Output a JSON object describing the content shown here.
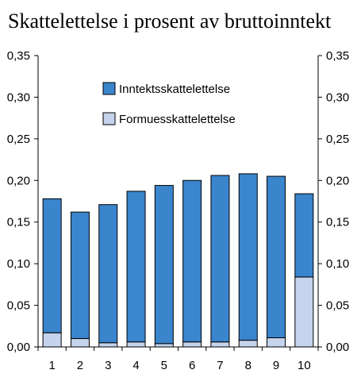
{
  "chart_data": {
    "type": "bar",
    "stacked": true,
    "title": "Skattelettelse i prosent av bruttoinntekt",
    "categories": [
      "1",
      "2",
      "3",
      "4",
      "5",
      "6",
      "7",
      "8",
      "9",
      "10"
    ],
    "series": [
      {
        "name": "Formuesskattelettelse",
        "color": "#c5d3ec",
        "values": [
          0.017,
          0.01,
          0.005,
          0.006,
          0.004,
          0.006,
          0.006,
          0.008,
          0.011,
          0.084
        ]
      },
      {
        "name": "Inntektsskattelettelse",
        "color": "#3a85cc",
        "values": [
          0.161,
          0.152,
          0.166,
          0.181,
          0.19,
          0.194,
          0.2,
          0.2,
          0.194,
          0.1
        ]
      }
    ],
    "legend_order": [
      "Inntektsskattelettelse",
      "Formuesskattelettelse"
    ],
    "ylim": [
      0,
      0.35
    ],
    "yticks": [
      "0,00",
      "0,05",
      "0,10",
      "0,15",
      "0,20",
      "0,25",
      "0,30",
      "0,35"
    ],
    "y_axis_both_sides": true,
    "grid": false,
    "legend_position": "upper-right"
  }
}
